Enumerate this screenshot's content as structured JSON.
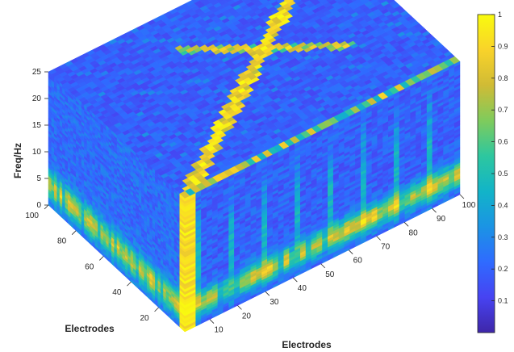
{
  "chart_data": {
    "type": "heatmap",
    "title": "",
    "xlabel": "Electrodes",
    "ylabel": "Electrodes",
    "zlabel": "Freq/Hz",
    "x_ticks": [
      "10",
      "20",
      "30",
      "40",
      "50",
      "60",
      "70",
      "80",
      "90",
      "100"
    ],
    "y_ticks": [
      "20",
      "40",
      "60",
      "80",
      "100"
    ],
    "z_ticks": [
      "0",
      "5",
      "10",
      "15",
      "20",
      "25"
    ],
    "xlim": [
      1,
      100
    ],
    "ylim": [
      1,
      100
    ],
    "zlim": [
      0,
      25
    ],
    "colorbar": {
      "ticks": [
        "0.1",
        "0.2",
        "0.3",
        "0.4",
        "0.5",
        "0.6",
        "0.7",
        "0.8",
        "0.9",
        "1"
      ],
      "range": [
        0,
        1
      ],
      "colormap": "parula",
      "colors": [
        "#3e26a8",
        "#4743f2",
        "#2f6bff",
        "#1b94e4",
        "#12b4c8",
        "#2dc79f",
        "#7fcb5c",
        "#d0bb35",
        "#f9d32a",
        "#f9fb0e"
      ]
    },
    "grid": false,
    "description_values": {
      "front_face_band_freq_hz": [
        2,
        6
      ],
      "diagonal_top_face": true
    }
  }
}
